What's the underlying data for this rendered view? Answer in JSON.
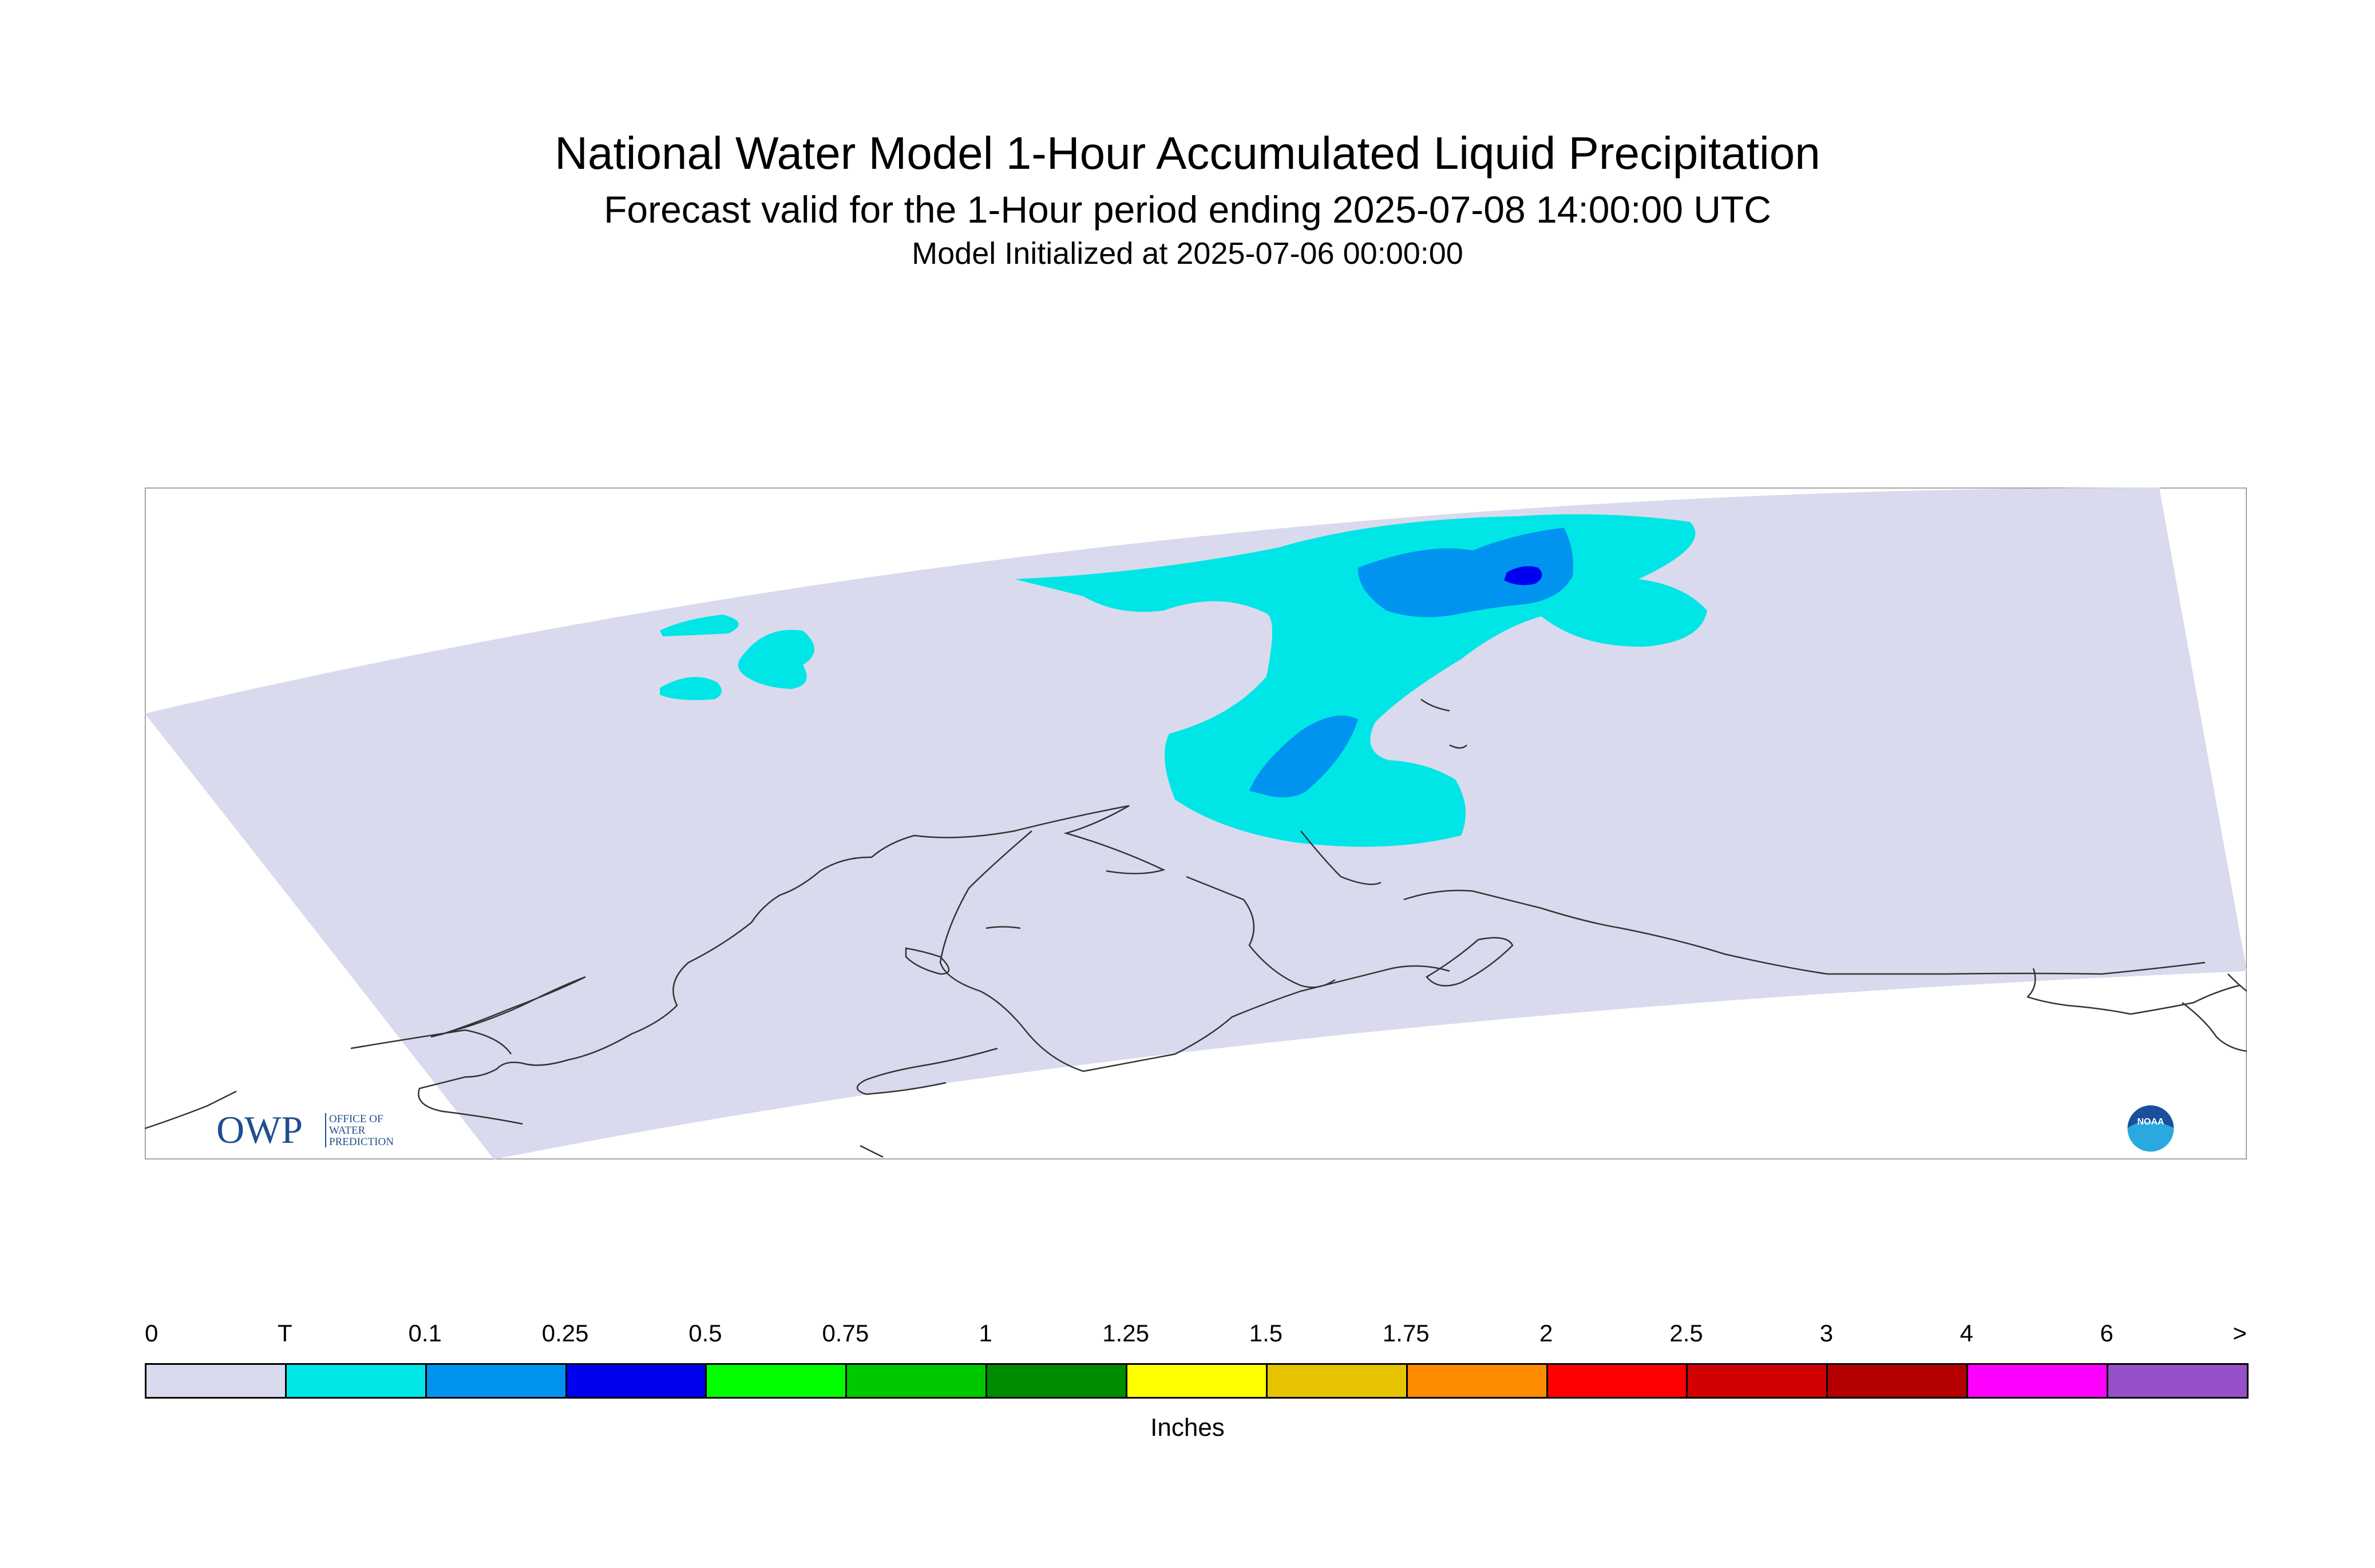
{
  "title": "National Water Model 1-Hour Accumulated Liquid Precipitation",
  "subtitle": "Forecast valid for the 1-Hour period ending 2025-07-08 14:00:00 UTC",
  "init_line": "Model Initialized at 2025-07-06 00:00:00",
  "logo_owp": {
    "text": "OWP",
    "sub": [
      "OFFICE OF",
      "WATER",
      "PREDICTION"
    ]
  },
  "logo_noaa": {
    "text": "NOAA"
  },
  "legend": {
    "units": "Inches",
    "tick_labels": [
      "0",
      "T",
      "0.1",
      "0.25",
      "0.5",
      "0.75",
      "1",
      "1.25",
      "1.5",
      "1.75",
      "2",
      "2.5",
      "3",
      "4",
      "6",
      ">"
    ],
    "colors": [
      "#dadaee",
      "#00e6e6",
      "#0094f0",
      "#0000f0",
      "#00ff00",
      "#00c800",
      "#008c00",
      "#ffff00",
      "#e6c300",
      "#ff8c00",
      "#ff0000",
      "#d20000",
      "#b40000",
      "#ff00ff",
      "#9650c8"
    ]
  },
  "map": {
    "background_color": "#dadaee",
    "colors": {
      "trace": "#00e6e6",
      "light": "#0094f0",
      "moderate": "#0000f0",
      "coastline": "#333333"
    }
  }
}
